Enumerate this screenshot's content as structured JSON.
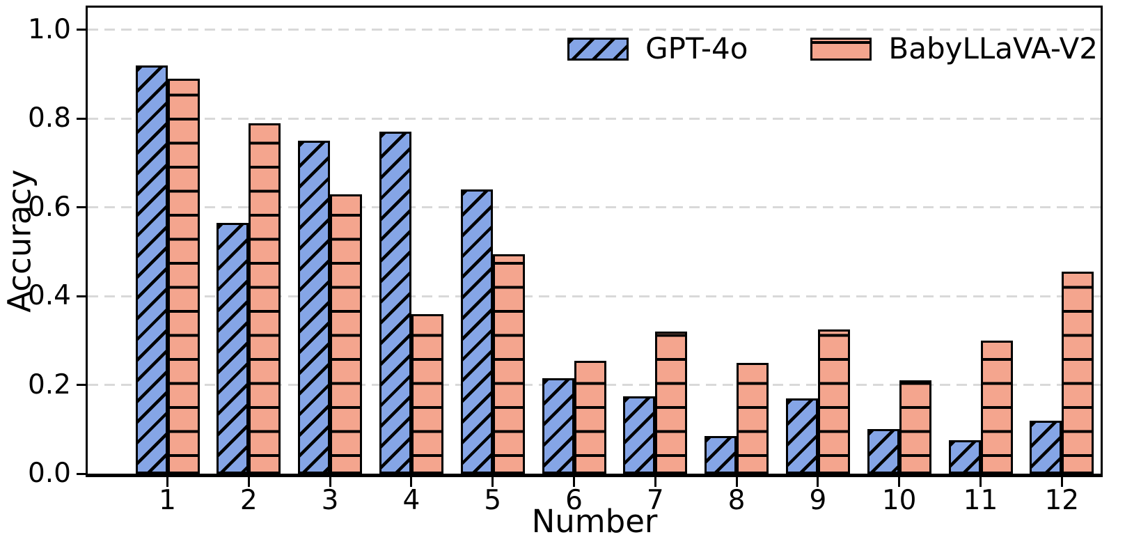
{
  "chart_data": {
    "type": "bar",
    "title": "",
    "xlabel": "Number",
    "ylabel": "Accuracy",
    "categories": [
      "1",
      "2",
      "3",
      "4",
      "5",
      "6",
      "7",
      "8",
      "9",
      "10",
      "11",
      "12"
    ],
    "series": [
      {
        "name": "GPT-4o",
        "color": "#85a5e6",
        "hatch": "/",
        "values": [
          0.92,
          0.565,
          0.75,
          0.77,
          0.64,
          0.215,
          0.175,
          0.085,
          0.17,
          0.1,
          0.075,
          0.12
        ]
      },
      {
        "name": "BabyLLaVA-V2",
        "color": "#f4a58e",
        "hatch": "-",
        "values": [
          0.89,
          0.79,
          0.63,
          0.36,
          0.495,
          0.255,
          0.32,
          0.25,
          0.325,
          0.21,
          0.3,
          0.455
        ]
      }
    ],
    "ylim": [
      0,
      1.05
    ],
    "yticks": [
      {
        "value": 0.0,
        "label": "0.0"
      },
      {
        "value": 0.2,
        "label": "0.2"
      },
      {
        "value": 0.4,
        "label": "0.4"
      },
      {
        "value": 0.6,
        "label": "0.6"
      },
      {
        "value": 0.8,
        "label": "0.8"
      },
      {
        "value": 1.0,
        "label": "1.0"
      }
    ],
    "grid": "horizontal-dashed",
    "grid_color": "#d9d9d9",
    "axis_color": "#000000",
    "legend_position": "upper-right-inside"
  }
}
